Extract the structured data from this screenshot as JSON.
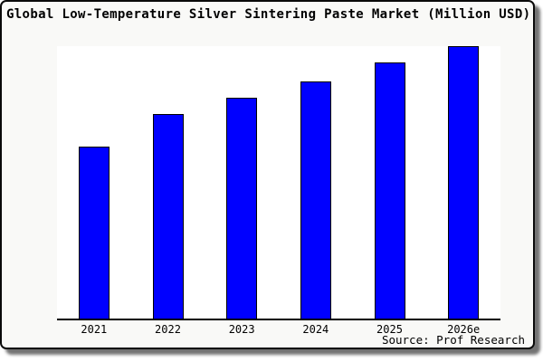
{
  "header": {
    "title": "Global Low-Temperature Silver Sintering Paste Market (Million USD)"
  },
  "footer": {
    "source_note": "Source: Prof Research"
  },
  "colors": {
    "bar_fill": "#0000ff",
    "bar_edge": "#000000",
    "card_background": "#f9f9f7",
    "plot_background": "#ffffff",
    "border": "#0a0a0a",
    "text": "#000000"
  },
  "chart_data": {
    "type": "bar",
    "title": "Global Low-Temperature Silver Sintering Paste Market (Million USD)",
    "categories": [
      "2021",
      "2022",
      "2023",
      "2024",
      "2025",
      "2026e"
    ],
    "values": [
      63,
      75,
      81,
      87,
      94,
      100
    ],
    "value_basis": "relative bar heights, tallest bar (2026e) = 100; no y-axis scale shown in chart",
    "xlabel": "",
    "ylabel": "",
    "ylim": [
      0,
      100
    ],
    "grid": false,
    "legend": "none",
    "source_note": "Source: Prof Research"
  }
}
